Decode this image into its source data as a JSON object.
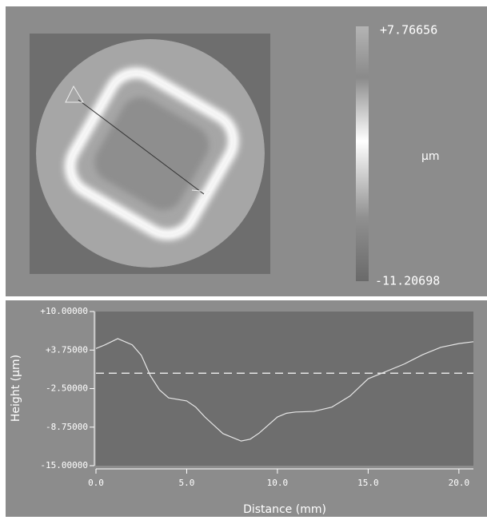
{
  "colorbar": {
    "max_label": "+7.76656",
    "unit": "µm",
    "min_label": "-11.20698"
  },
  "chart_data": {
    "type": "line",
    "y_label": "Height (µm)",
    "x_label": "Distance (mm)",
    "x": [
      0,
      0.5,
      1.2,
      2,
      2.5,
      3,
      3.5,
      4,
      5,
      5.5,
      6,
      7,
      8,
      8.5,
      9,
      10,
      10.5,
      11,
      12,
      13,
      14,
      15,
      16,
      17,
      18,
      19,
      20,
      20.8
    ],
    "series": [
      {
        "color": "#e6e6e6",
        "values": [
          4.0,
          4.6,
          5.6,
          4.6,
          2.9,
          -0.4,
          -2.7,
          -4.0,
          -4.5,
          -5.5,
          -7.1,
          -9.8,
          -11.0,
          -10.7,
          -9.7,
          -7.1,
          -6.5,
          -6.3,
          -6.2,
          -5.5,
          -3.7,
          -0.9,
          0.3,
          1.5,
          3.0,
          4.2,
          4.8,
          5.1
        ]
      }
    ],
    "reference_line": 0,
    "xlim": [
      0,
      20.8
    ],
    "ylim": [
      -15,
      10
    ],
    "xticks": [
      {
        "value": 0,
        "label": "0.0"
      },
      {
        "value": 5,
        "label": "5.0"
      },
      {
        "value": 10,
        "label": "10.0"
      },
      {
        "value": 15,
        "label": "15.0"
      },
      {
        "value": 20,
        "label": "20.0"
      }
    ],
    "yticks": [
      {
        "value": 10,
        "label": "+10.00000"
      },
      {
        "value": 3.75,
        "label": "+3.75000"
      },
      {
        "value": -2.5,
        "label": "-2.50000"
      },
      {
        "value": -8.75,
        "label": "-8.75000"
      },
      {
        "value": -15,
        "label": "-15.00000"
      }
    ]
  }
}
